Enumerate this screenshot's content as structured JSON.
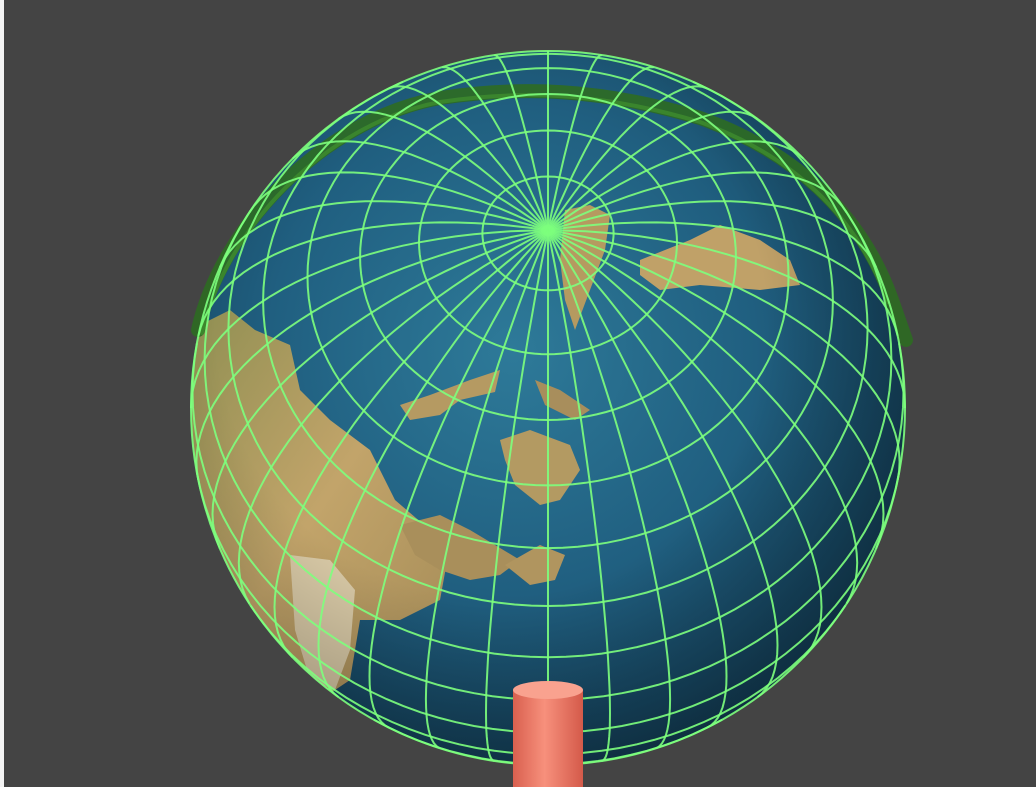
{
  "scene": {
    "background_color": "#444444",
    "globe": {
      "ocean_color": "#1f5f7e",
      "ocean_highlight": "#2e7a99",
      "land_color": "#b89a60",
      "land_shadow": "#7d8a4a"
    },
    "wireframe": {
      "color": "#7dff7d",
      "meridian_count": 36,
      "parallel_count": 17
    },
    "orbit_ring": {
      "color": "#2e6b22"
    },
    "pole_pillar": {
      "color": "#f07a68"
    }
  },
  "icons": {
    "globe": "earth-globe",
    "grid": "wireframe-sphere",
    "ring": "orbit-ring",
    "pillar": "pole-cylinder"
  }
}
